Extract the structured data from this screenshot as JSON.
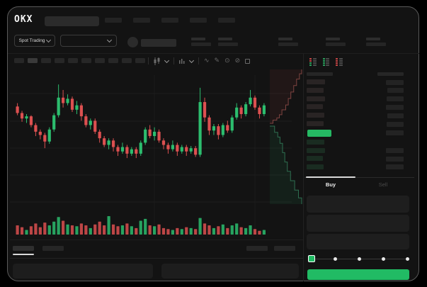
{
  "colors": {
    "up": "#2cbd6e",
    "down": "#dc5050",
    "accent_green": "#21bb64",
    "last_price_bg": "#25b863",
    "depth_ask_line": "#7e4340",
    "depth_bid_line": "#2e6e50",
    "active_tab_indicator": "#d9d9d9"
  },
  "top_nav": {
    "brand": "OKX",
    "nav_item_count": 5
  },
  "market_bar": {
    "market_type_label": "Spot Trading",
    "stat_block_count": 5
  },
  "chart_toolbar": {
    "timeframe_count": 10,
    "active_timeframe_index": 1,
    "tool_icons": [
      {
        "name": "line-chart-tool-icon",
        "glyph": "∿"
      },
      {
        "name": "draw-tool-icon",
        "glyph": "✎"
      },
      {
        "name": "screenshot-tool-icon",
        "glyph": "⊙"
      },
      {
        "name": "hide-drawings-icon",
        "glyph": "⊘"
      }
    ]
  },
  "chart_data": {
    "type": "candlestick",
    "axis_labels_visible": false,
    "price_scale_relative": [
      0,
      100
    ],
    "grid": "horizontal-faint",
    "candles": [
      [
        76,
        79,
        68,
        70
      ],
      [
        70,
        72,
        62,
        65
      ],
      [
        65,
        69,
        61,
        67
      ],
      [
        67,
        68,
        57,
        59
      ],
      [
        59,
        61,
        49,
        53
      ],
      [
        53,
        55,
        46,
        50
      ],
      [
        50,
        52,
        38,
        44
      ],
      [
        44,
        57,
        42,
        55
      ],
      [
        55,
        70,
        53,
        68
      ],
      [
        68,
        96,
        66,
        84
      ],
      [
        84,
        91,
        75,
        79
      ],
      [
        79,
        87,
        77,
        83
      ],
      [
        83,
        85,
        71,
        73
      ],
      [
        73,
        81,
        69,
        77
      ],
      [
        77,
        79,
        63,
        67
      ],
      [
        67,
        69,
        57,
        59
      ],
      [
        59,
        65,
        55,
        63
      ],
      [
        63,
        65,
        51,
        53
      ],
      [
        53,
        55,
        43,
        47
      ],
      [
        47,
        49,
        39,
        41
      ],
      [
        41,
        47,
        37,
        45
      ],
      [
        45,
        47,
        35,
        39
      ],
      [
        39,
        41,
        31,
        35
      ],
      [
        35,
        43,
        33,
        39
      ],
      [
        39,
        41,
        29,
        33
      ],
      [
        33,
        39,
        31,
        37
      ],
      [
        37,
        39,
        29,
        33
      ],
      [
        33,
        45,
        31,
        43
      ],
      [
        43,
        57,
        41,
        55
      ],
      [
        55,
        59,
        47,
        49
      ],
      [
        49,
        57,
        45,
        53
      ],
      [
        53,
        55,
        43,
        45
      ],
      [
        45,
        47,
        37,
        41
      ],
      [
        41,
        43,
        33,
        37
      ],
      [
        37,
        45,
        35,
        41
      ],
      [
        41,
        43,
        31,
        35
      ],
      [
        35,
        41,
        33,
        39
      ],
      [
        39,
        41,
        31,
        35
      ],
      [
        35,
        40,
        33,
        38
      ],
      [
        38,
        40,
        30,
        32
      ],
      [
        32,
        93,
        30,
        80
      ],
      [
        80,
        84,
        62,
        66
      ],
      [
        66,
        68,
        50,
        54
      ],
      [
        54,
        60,
        50,
        58
      ],
      [
        58,
        60,
        46,
        50
      ],
      [
        50,
        61,
        48,
        59
      ],
      [
        59,
        63,
        52,
        54
      ],
      [
        54,
        68,
        52,
        66
      ],
      [
        66,
        79,
        64,
        75
      ],
      [
        75,
        77,
        65,
        69
      ],
      [
        69,
        80,
        67,
        78
      ],
      [
        78,
        91,
        76,
        84
      ],
      [
        84,
        86,
        73,
        75
      ],
      [
        75,
        77,
        65,
        69
      ],
      [
        69,
        79,
        67,
        77
      ]
    ],
    "volume_relative": [
      0.5,
      0.4,
      0.25,
      0.45,
      0.6,
      0.4,
      0.65,
      0.5,
      0.7,
      0.95,
      0.75,
      0.55,
      0.5,
      0.45,
      0.6,
      0.5,
      0.35,
      0.55,
      0.7,
      0.5,
      1.0,
      0.55,
      0.45,
      0.5,
      0.6,
      0.45,
      0.35,
      0.75,
      0.85,
      0.5,
      0.45,
      0.55,
      0.35,
      0.3,
      0.25,
      0.35,
      0.3,
      0.4,
      0.35,
      0.3,
      0.9,
      0.6,
      0.5,
      0.35,
      0.45,
      0.55,
      0.35,
      0.5,
      0.6,
      0.4,
      0.35,
      0.5,
      0.3,
      0.2,
      0.25
    ],
    "depth": {
      "asks": [
        [
          0.02,
          0
        ],
        [
          0.1,
          0.06
        ],
        [
          0.22,
          0.1
        ],
        [
          0.3,
          0.16
        ],
        [
          0.38,
          0.25
        ],
        [
          0.5,
          0.34
        ],
        [
          0.58,
          0.46
        ],
        [
          0.66,
          0.58
        ],
        [
          0.75,
          0.7
        ],
        [
          0.84,
          0.82
        ],
        [
          0.93,
          0.92
        ],
        [
          1.0,
          1.0
        ]
      ],
      "bids": [
        [
          0.02,
          0
        ],
        [
          0.15,
          0.08
        ],
        [
          0.25,
          0.14
        ],
        [
          0.32,
          0.22
        ],
        [
          0.4,
          0.34
        ],
        [
          0.47,
          0.46
        ],
        [
          0.55,
          0.58
        ],
        [
          0.65,
          0.7
        ],
        [
          0.78,
          0.82
        ],
        [
          0.9,
          0.92
        ],
        [
          1.0,
          1.0
        ]
      ]
    }
  },
  "order_book": {
    "view_modes": [
      "combined-book",
      "bids-only",
      "asks-only"
    ],
    "ask_rows": [
      {
        "price_w": 26,
        "amount_w": 25
      },
      {
        "price_w": 24,
        "amount_w": 23
      },
      {
        "price_w": 26,
        "amount_w": 24
      },
      {
        "price_w": 23,
        "amount_w": 25
      },
      {
        "price_w": 25,
        "amount_w": 23
      },
      {
        "price_w": 24,
        "amount_w": 24
      }
    ],
    "last_price_row": {
      "highlighted": true,
      "amount_w": 25
    },
    "bid_rows": [
      {
        "price_w": 25,
        "amount_w": 0
      },
      {
        "price_w": 26,
        "amount_w": 25
      },
      {
        "price_w": 23,
        "amount_w": 25
      },
      {
        "price_w": 24,
        "amount_w": 25
      }
    ]
  },
  "trade_panel": {
    "buy_tab_label": "Buy",
    "sell_tab_label": "Sell",
    "field_count": 3,
    "slider": {
      "stop_count": 5,
      "active_stop": 0
    }
  },
  "bottom_bar": {
    "tab_count": 2,
    "active_tab": 0,
    "right_link_count": 2,
    "panel_count": 2
  }
}
